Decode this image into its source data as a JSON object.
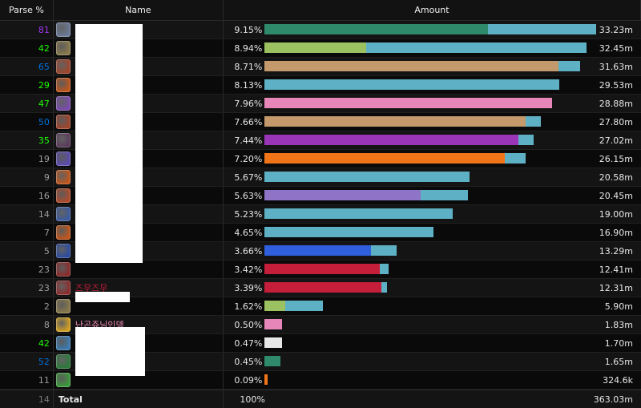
{
  "header": {
    "parse": "Parse %",
    "name": "Name",
    "amount": "Amount"
  },
  "rows": [
    {
      "parse": "81",
      "parse_color": "#a335ee",
      "icon": "shadowform-icon",
      "icon_color": "#6a7a9a",
      "name": "",
      "pct": "9.15%",
      "bar_a": 0.674,
      "bar_a_color": "#2e8a6a",
      "bar_b": 0.326,
      "amount": "33.23m"
    },
    {
      "parse": "42",
      "parse_color": "#1eff00",
      "icon": "hunter-icon",
      "icon_color": "#8a7a4a",
      "name": "",
      "pct": "8.94%",
      "bar_a": 0.305,
      "bar_a_color": "#9bc160",
      "bar_b": 0.665,
      "amount": "32.45m"
    },
    {
      "parse": "65",
      "parse_color": "#0070dd",
      "icon": "warrior-icon",
      "icon_color": "#a0442a",
      "name": "",
      "pct": "8.71%",
      "bar_a": 0.886,
      "bar_a_color": "#c49a6c",
      "bar_b": 0.064,
      "amount": "31.63m"
    },
    {
      "parse": "29",
      "parse_color": "#1eff00",
      "icon": "fire-icon",
      "icon_color": "#c2551a",
      "name": "",
      "pct": "8.13%",
      "bar_a": 0.887,
      "bar_a_color": "#5eb0c4",
      "bar_b": 0.0,
      "amount": "29.53m"
    },
    {
      "parse": "47",
      "parse_color": "#1eff00",
      "icon": "arcane-icon",
      "icon_color": "#7a4ab0",
      "name": "",
      "pct": "7.96%",
      "bar_a": 0.867,
      "bar_a_color": "#e786b8",
      "bar_b": 0.0,
      "amount": "28.88m"
    },
    {
      "parse": "50",
      "parse_color": "#0070dd",
      "icon": "warrior-icon",
      "icon_color": "#a0442a",
      "name": "",
      "pct": "7.66%",
      "bar_a": 0.786,
      "bar_a_color": "#c49a6c",
      "bar_b": 0.047,
      "amount": "27.80m"
    },
    {
      "parse": "35",
      "parse_color": "#1eff00",
      "icon": "warlock-icon",
      "icon_color": "#5a3a5a",
      "name": "",
      "pct": "7.44%",
      "bar_a": 0.765,
      "bar_a_color": "#9b35b8",
      "bar_b": 0.047,
      "amount": "27.02m"
    },
    {
      "parse": "19",
      "parse_color": "#9d9d9d",
      "icon": "pyro-icon",
      "icon_color": "#5a4ab0",
      "name": "",
      "pct": "7.20%",
      "bar_a": 0.725,
      "bar_a_color": "#f07418",
      "bar_b": 0.061,
      "amount": "26.15m"
    },
    {
      "parse": "9",
      "parse_color": "#9d9d9d",
      "icon": "fire-icon",
      "icon_color": "#c2551a",
      "name": "",
      "pct": "5.67%",
      "bar_a": 0.618,
      "bar_a_color": "#5eb0c4",
      "bar_b": 0.0,
      "amount": "20.58m"
    },
    {
      "parse": "16",
      "parse_color": "#9d9d9d",
      "icon": "slash-icon",
      "icon_color": "#b04a2a",
      "name": "",
      "pct": "5.63%",
      "bar_a": 0.471,
      "bar_a_color": "#8f73c6",
      "bar_b": 0.142,
      "amount": "20.45m"
    },
    {
      "parse": "14",
      "parse_color": "#9d9d9d",
      "icon": "frost-icon",
      "icon_color": "#3a5aa0",
      "name": "",
      "pct": "5.23%",
      "bar_a": 0.519,
      "bar_a_color": "#5eb0c4",
      "bar_b": 0.048,
      "amount": "19.00m"
    },
    {
      "parse": "7",
      "parse_color": "#9d9d9d",
      "icon": "fire-icon",
      "icon_color": "#c2551a",
      "name": "",
      "pct": "4.65%",
      "bar_a": 0.509,
      "bar_a_color": "#5eb0c4",
      "bar_b": 0.0,
      "amount": "16.90m"
    },
    {
      "parse": "5",
      "parse_color": "#9d9d9d",
      "icon": "lightning-icon",
      "icon_color": "#2a4aa0",
      "name": "",
      "pct": "3.66%",
      "bar_a": 0.321,
      "bar_a_color": "#2f5fdd",
      "bar_b": 0.077,
      "amount": "13.29m"
    },
    {
      "parse": "23",
      "parse_color": "#9d9d9d",
      "icon": "blood-icon",
      "icon_color": "#8a2a2a",
      "name": "",
      "pct": "3.42%",
      "bar_a": 0.347,
      "bar_a_color": "#c41e3a",
      "bar_b": 0.027,
      "amount": "12.41m"
    },
    {
      "parse": "23",
      "parse_color": "#9d9d9d",
      "icon": "blood-icon",
      "icon_color": "#8a2a2a",
      "name": "즈무즈무",
      "name_color": "#c41e3a",
      "pct": "3.39%",
      "bar_a": 0.351,
      "bar_a_color": "#c41e3a",
      "bar_b": 0.017,
      "amount": "12.31m"
    },
    {
      "parse": "2",
      "parse_color": "#9d9d9d",
      "icon": "hunter-icon",
      "icon_color": "#8a7a4a",
      "name": "",
      "pct": "1.62%",
      "bar_a": 0.063,
      "bar_a_color": "#9bc160",
      "bar_b": 0.113,
      "amount": "5.90m"
    },
    {
      "parse": "8",
      "parse_color": "#9d9d9d",
      "icon": "holy-icon",
      "icon_color": "#d4a020",
      "name": "난곤쥬님인뎅",
      "name_color": "#f58cba",
      "pct": "0.50%",
      "bar_a": 0.053,
      "bar_a_color": "#e786b8",
      "bar_b": 0.0,
      "amount": "1.83m"
    },
    {
      "parse": "42",
      "parse_color": "#1eff00",
      "icon": "frost-nova-icon",
      "icon_color": "#3a7ab0",
      "name": "",
      "pct": "0.47%",
      "bar_a": 0.053,
      "bar_a_color": "#e8e8e8",
      "bar_b": 0.0,
      "amount": "1.70m"
    },
    {
      "parse": "52",
      "parse_color": "#0070dd",
      "icon": "nature-icon",
      "icon_color": "#2a7a3a",
      "name": "",
      "pct": "0.45%",
      "bar_a": 0.048,
      "bar_a_color": "#2e8a6a",
      "bar_b": 0.0,
      "amount": "1.65m"
    },
    {
      "parse": "11",
      "parse_color": "#9d9d9d",
      "icon": "leaf-icon",
      "icon_color": "#3a9a3a",
      "name": "",
      "pct": "0.09%",
      "bar_a": 0.009,
      "bar_a_color": "#f07418",
      "bar_b": 0.0,
      "amount": "324.6k"
    }
  ],
  "total": {
    "parse": "14",
    "label": "Total",
    "pct": "100%",
    "amount": "363.03m"
  }
}
